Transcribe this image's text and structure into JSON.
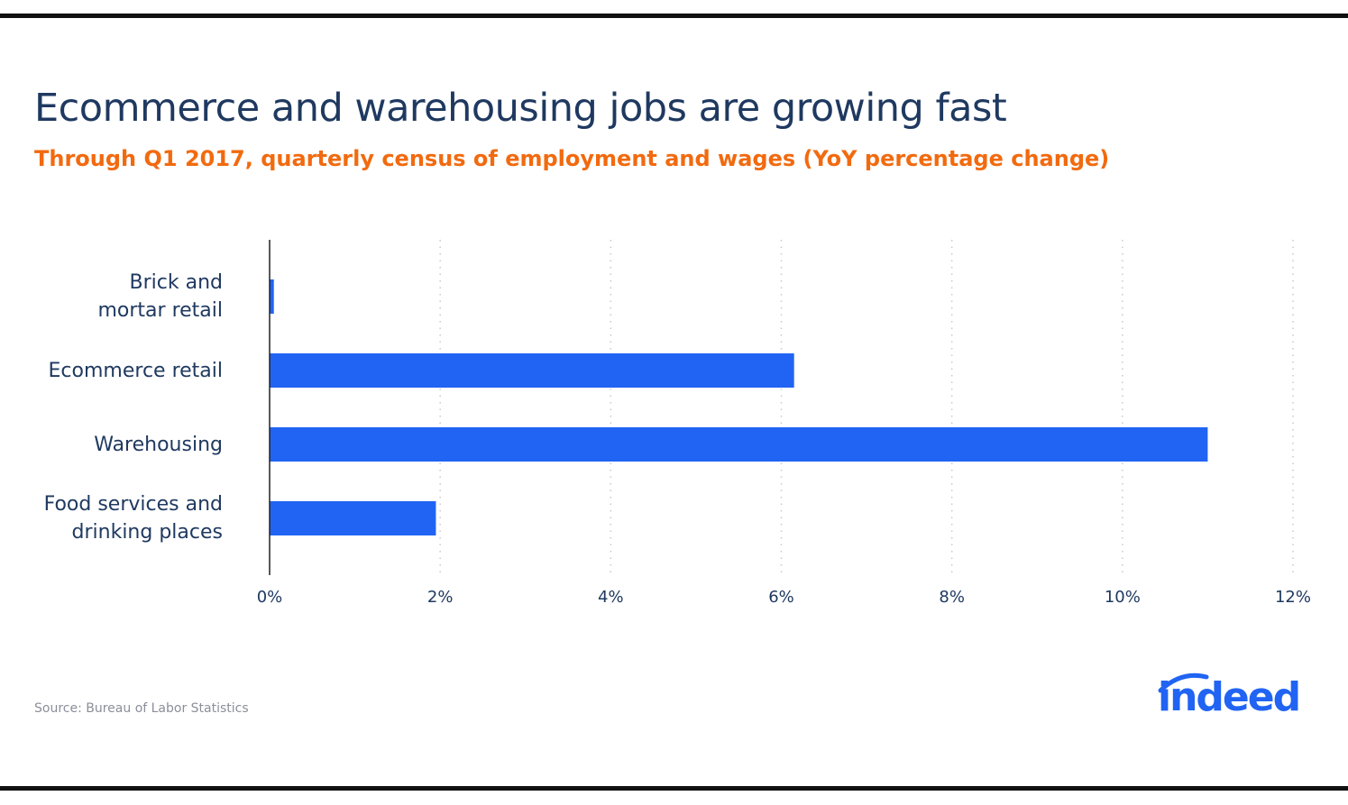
{
  "header": {
    "title": "Ecommerce and warehousing jobs are growing fast",
    "subtitle": "Through Q1 2017, quarterly census of employment and wages (YoY percentage change)"
  },
  "footer": {
    "source": "Source: Bureau of Labor Statistics",
    "logo_text": "indeed"
  },
  "colors": {
    "bar": "#2164f3",
    "title": "#1f3960",
    "subtitle": "#f26a0f",
    "grid": "#c9c9c9",
    "axis": "#222222"
  },
  "chart_data": {
    "type": "bar",
    "orientation": "horizontal",
    "title": "Ecommerce and warehousing jobs are growing fast",
    "subtitle": "Through Q1 2017, quarterly census of employment and wages (YoY percentage change)",
    "categories": [
      [
        "Brick and",
        "mortar retail"
      ],
      [
        "Ecommerce retail"
      ],
      [
        "Warehousing"
      ],
      [
        "Food services and",
        "drinking places"
      ]
    ],
    "values": [
      0.05,
      6.15,
      11.0,
      1.95
    ],
    "xlim": [
      0,
      12
    ],
    "xticks": [
      0,
      2,
      4,
      6,
      8,
      10,
      12
    ],
    "xtick_labels": [
      "0%",
      "2%",
      "4%",
      "6%",
      "8%",
      "10%",
      "12%"
    ],
    "grid": "vertical-dotted",
    "legend": "none"
  }
}
